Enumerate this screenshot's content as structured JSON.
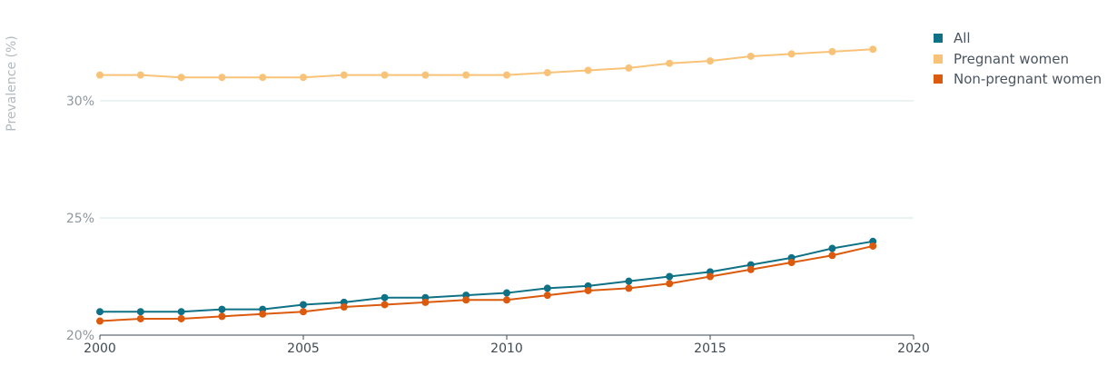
{
  "chart_data": {
    "type": "line",
    "title": "",
    "ylabel": "Prevalence (%)",
    "xlabel": "",
    "xlim": [
      2000,
      2020
    ],
    "ylim": [
      20,
      30
    ],
    "x_ticks": [
      "2000",
      "2005",
      "2010",
      "2015",
      "2020"
    ],
    "y_ticks": [
      "20%",
      "25%",
      "30%"
    ],
    "grid": true,
    "legend_position": "top-right",
    "x": [
      2000,
      2001,
      2002,
      2003,
      2004,
      2005,
      2006,
      2007,
      2008,
      2009,
      2010,
      2011,
      2012,
      2013,
      2014,
      2015,
      2016,
      2017,
      2018,
      2019
    ],
    "series": [
      {
        "name": "All",
        "color": "#0f7185",
        "values": [
          21.0,
          21.0,
          21.0,
          21.1,
          21.1,
          21.3,
          21.4,
          21.6,
          21.6,
          21.7,
          21.8,
          22.0,
          22.1,
          22.3,
          22.5,
          22.7,
          23.0,
          23.3,
          23.7,
          24.0
        ]
      },
      {
        "name": "Pregnant women",
        "color": "#f8c378",
        "values": [
          31.1,
          31.1,
          31.0,
          31.0,
          31.0,
          31.0,
          31.1,
          31.1,
          31.1,
          31.1,
          31.1,
          31.2,
          31.3,
          31.4,
          31.6,
          31.7,
          31.9,
          32.0,
          32.1,
          32.2
        ]
      },
      {
        "name": "Non-pregnant women",
        "color": "#dc5a0d",
        "values": [
          20.6,
          20.7,
          20.7,
          20.8,
          20.9,
          21.0,
          21.2,
          21.3,
          21.4,
          21.5,
          21.5,
          21.7,
          21.9,
          22.0,
          22.2,
          22.5,
          22.8,
          23.1,
          23.4,
          23.8
        ]
      }
    ]
  }
}
